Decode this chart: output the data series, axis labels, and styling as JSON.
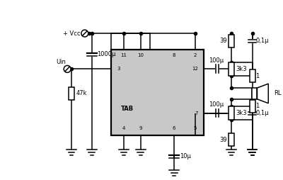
{
  "bg": "white",
  "lc": "black",
  "chip_fill": "#c8c8c8",
  "lw": 1.1,
  "lw2": 1.6,
  "fs": 6.0,
  "fs2": 5.0,
  "labels": {
    "vcc": "+ Vcc",
    "uin": "Uin",
    "c1000": "1000μ",
    "c100t": "100μ",
    "c100b": "100μ",
    "c10": "10μ",
    "c01t": "0,1μ",
    "c01b": "0,1μ",
    "r47k": "47k",
    "r39t": "39",
    "r39b": "39",
    "r3k3t": "3k3",
    "r3k3b": "3k3",
    "r1t": "1",
    "r1b": "1",
    "rl": "RL",
    "tab": "TAB",
    "p11": "11",
    "p10": "10",
    "p8": "8",
    "p2": "2",
    "p3": "3",
    "p12": "12",
    "p7": "7",
    "p4": "4",
    "p9": "9",
    "p6": "6",
    "p5": "5"
  }
}
